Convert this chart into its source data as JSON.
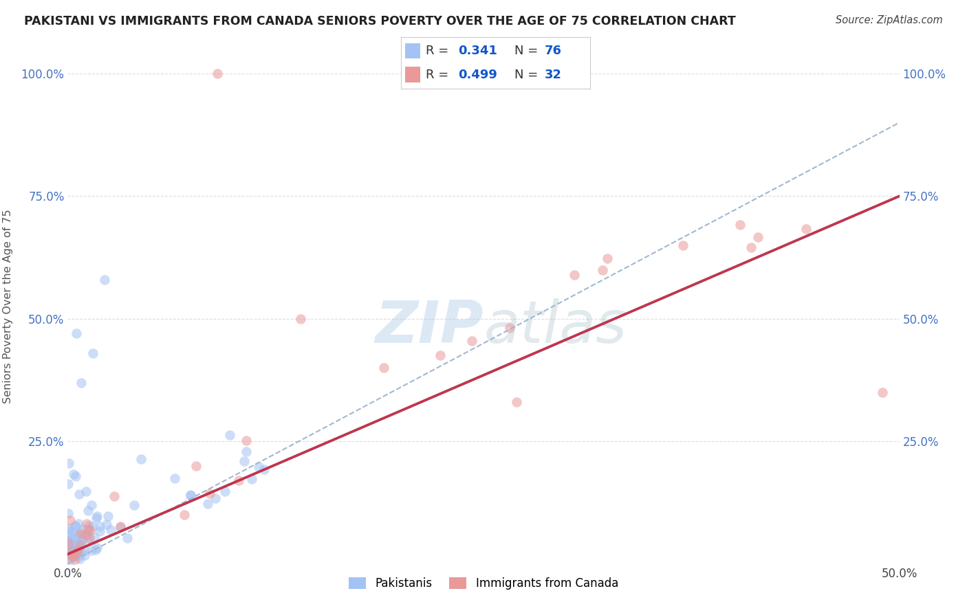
{
  "title": "PAKISTANI VS IMMIGRANTS FROM CANADA SENIORS POVERTY OVER THE AGE OF 75 CORRELATION CHART",
  "source": "Source: ZipAtlas.com",
  "ylabel": "Seniors Poverty Over the Age of 75",
  "xlim": [
    0.0,
    0.5
  ],
  "ylim": [
    0.0,
    1.05
  ],
  "blue_R": 0.341,
  "blue_N": 76,
  "pink_R": 0.499,
  "pink_N": 32,
  "blue_color": "#a4c2f4",
  "pink_color": "#ea9999",
  "line_blue": "#1155cc",
  "line_pink": "#cc3344",
  "dash_color": "#a0b8d0",
  "watermark_color": "#a8c8e8",
  "background_color": "#ffffff",
  "legend_value_color": "#1155cc",
  "grid_color": "#dddddd",
  "tick_label_color": "#4472c4",
  "title_color": "#222222",
  "ylabel_color": "#555555",
  "legend_label1": "Pakistanis",
  "legend_label2": "Immigrants from Canada",
  "blue_line_x0": 0.0,
  "blue_line_y0": 0.02,
  "blue_line_x1": 0.5,
  "blue_line_y1": 0.75,
  "pink_line_x0": 0.0,
  "pink_line_y0": 0.02,
  "pink_line_x1": 0.5,
  "pink_line_y1": 0.75,
  "dash_line_x0": 0.0,
  "dash_line_y0": 0.0,
  "dash_line_x1": 0.5,
  "dash_line_y1": 0.9
}
